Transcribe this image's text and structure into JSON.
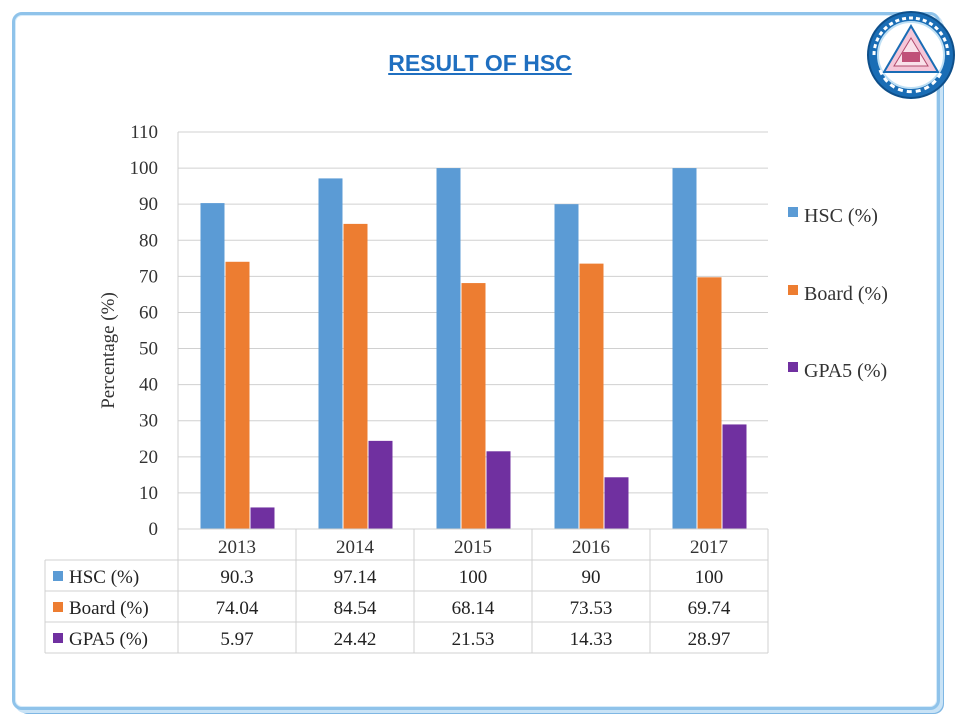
{
  "title": "RESULT OF HSC",
  "colors": {
    "hsc": "#5b9bd5",
    "board": "#ed7d31",
    "gpa5": "#7030a0",
    "frame": "#8fc3ea"
  },
  "seal": {
    "icon": "college-seal-icon"
  },
  "chart_data": {
    "type": "bar",
    "categories": [
      "2013",
      "2014",
      "2015",
      "2016",
      "2017"
    ],
    "series": [
      {
        "name": "HSC (%)",
        "values": [
          90.3,
          97.14,
          100,
          90,
          100
        ]
      },
      {
        "name": "Board (%)",
        "values": [
          74.04,
          84.54,
          68.14,
          73.53,
          69.74
        ]
      },
      {
        "name": "GPA5 (%)",
        "values": [
          5.97,
          24.42,
          21.53,
          14.33,
          28.97
        ]
      }
    ],
    "table_values": [
      [
        "90.3",
        "97.14",
        "100",
        "90",
        "100"
      ],
      [
        "74.04",
        "84.54",
        "68.14",
        "73.53",
        "69.74"
      ],
      [
        "5.97",
        "24.42",
        "21.53",
        "14.33",
        "28.97"
      ]
    ],
    "ylabel": "Percentage (%)",
    "ylim": [
      0,
      110
    ],
    "yticks": [
      "0",
      "10",
      "20",
      "30",
      "40",
      "50",
      "60",
      "70",
      "80",
      "90",
      "100",
      "110"
    ],
    "grid": true,
    "legend": "right",
    "data_table": true
  }
}
